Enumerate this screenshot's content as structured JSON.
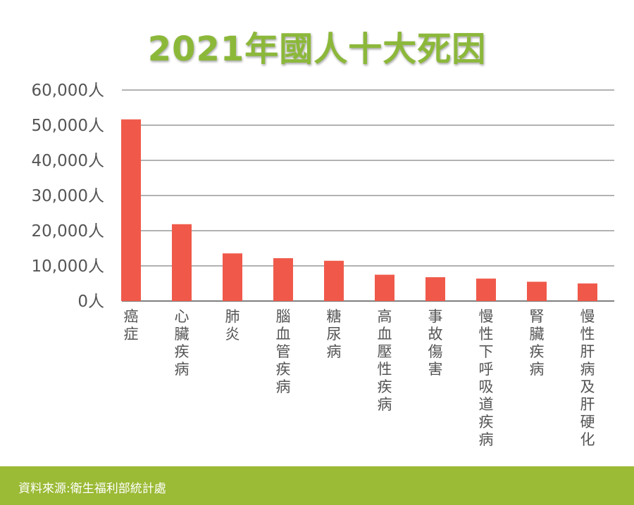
{
  "chart_data": {
    "type": "bar",
    "title": "2021年國人十大死因",
    "categories": [
      "癌症",
      "心臟疾病",
      "肺炎",
      "腦血管疾病",
      "糖尿病",
      "高血壓性疾病",
      "事故傷害",
      "慢性下呼吸道疾病",
      "腎臟疾病",
      "慢性肝病及肝硬化"
    ],
    "values": [
      51656,
      21852,
      13549,
      12182,
      11450,
      7486,
      6775,
      6380,
      5488,
      4996
    ],
    "ylim": [
      0,
      60000
    ],
    "yticks": [
      "0人",
      "10,000人",
      "20,000人",
      "30,000人",
      "40,000人",
      "50,000人",
      "60,000人"
    ],
    "grid": true,
    "bar_color": "#f0594a"
  },
  "footer": {
    "source": "資料來源:衛生福利部統計處"
  },
  "colors": {
    "title": "#8cb83a",
    "footer_bg": "#9bba35"
  }
}
